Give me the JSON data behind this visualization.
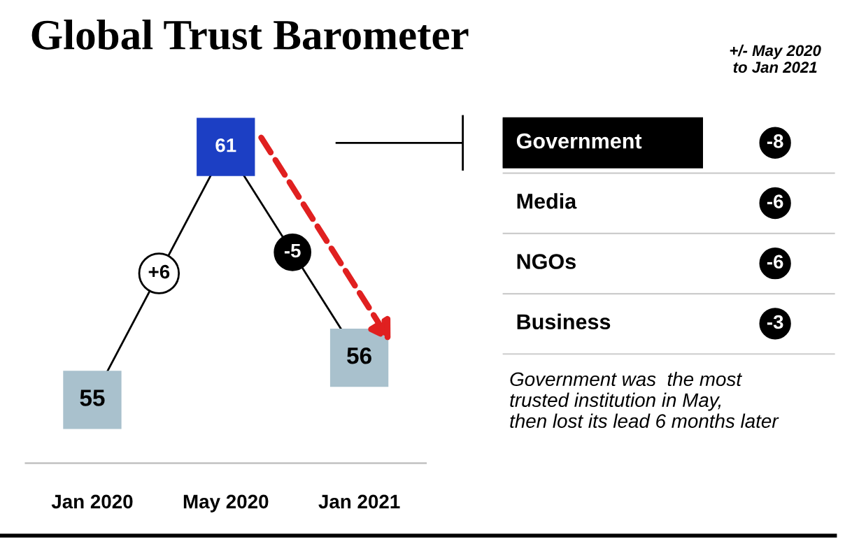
{
  "chart_data": [
    {
      "type": "line",
      "title": "Global Trust Barometer",
      "categories": [
        "Jan 2020",
        "May 2020",
        "Jan 2021"
      ],
      "series": [
        {
          "color": "#000000",
          "colors": [
            "#a9c1cd",
            "#1c3fc4",
            "#a9c1cd"
          ],
          "values": [
            55,
            61,
            56
          ]
        }
      ],
      "marker": "square",
      "data_labels": true,
      "grid": false,
      "tick_labels": "x",
      "annotations": [
        "+6",
        "-5"
      ]
    },
    {
      "type": "other",
      "title": "+/- May 2020\nto Jan 2021",
      "annotations": [
        "Government",
        "-8",
        "Media",
        "-6",
        "NGOs",
        "-6",
        "Business",
        "-3",
        "Government was  the most\ntrusted institution in May,\nthen lost its lead 6 months later"
      ]
    }
  ]
}
